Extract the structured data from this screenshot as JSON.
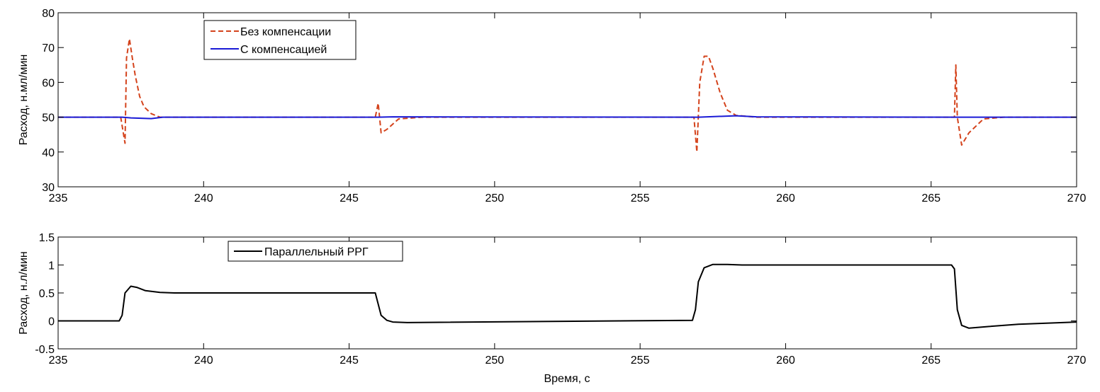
{
  "chart_data": [
    {
      "type": "line",
      "title": "",
      "xlabel": "",
      "ylabel": "Расход, н.мл/мин",
      "xlim": [
        235,
        270
      ],
      "ylim": [
        30,
        80
      ],
      "xticks": [
        235,
        240,
        245,
        250,
        255,
        260,
        265,
        270
      ],
      "yticks": [
        30,
        40,
        50,
        60,
        70,
        80
      ],
      "grid": false,
      "legend": "top-left",
      "series": [
        {
          "name": "Без компенсации",
          "color": "#d4431c",
          "style": "dashed",
          "x": [
            235,
            237.15,
            237.3,
            237.35,
            237.45,
            237.55,
            237.65,
            237.8,
            237.95,
            238.2,
            238.5,
            239,
            245.9,
            246.0,
            246.1,
            246.3,
            246.7,
            247.5,
            256.85,
            256.95,
            257.05,
            257.2,
            257.35,
            257.5,
            257.75,
            258,
            258.3,
            259,
            260,
            265.8,
            265.85,
            265.9,
            266.05,
            266.3,
            266.8,
            267.5,
            270
          ],
          "y": [
            50,
            50,
            42.5,
            67,
            72.5,
            67,
            62,
            56,
            53,
            51,
            50,
            50,
            50,
            54,
            45.5,
            46.5,
            49.5,
            50,
            50,
            40,
            60,
            67.5,
            67.5,
            64,
            57,
            52,
            50.5,
            50,
            50,
            50,
            65,
            50,
            42,
            45.5,
            49.5,
            50,
            50
          ]
        },
        {
          "name": "С компенсацией",
          "color": "#1a1ad6",
          "style": "solid",
          "x": [
            235,
            237.2,
            237.5,
            238.2,
            238.6,
            246,
            246.5,
            257,
            258.3,
            259,
            266,
            270
          ],
          "y": [
            50,
            50,
            49.8,
            49.6,
            50,
            50,
            50.1,
            50,
            50.4,
            50.1,
            50,
            50
          ]
        }
      ]
    },
    {
      "type": "line",
      "title": "",
      "xlabel": "Время, с",
      "ylabel": "Расход, н.л/мин",
      "xlim": [
        235,
        270
      ],
      "ylim": [
        -0.5,
        1.5
      ],
      "xticks": [
        235,
        240,
        245,
        250,
        255,
        260,
        265,
        270
      ],
      "yticks": [
        -0.5,
        0,
        0.5,
        1,
        1.5
      ],
      "grid": false,
      "legend": "top-left",
      "series": [
        {
          "name": "Параллельный РРГ",
          "color": "#000000",
          "style": "solid",
          "x": [
            235,
            237.1,
            237.2,
            237.3,
            237.5,
            237.7,
            238,
            238.5,
            239,
            245.9,
            246,
            246.1,
            246.3,
            246.5,
            247,
            256.8,
            256.9,
            257.0,
            257.2,
            257.5,
            258,
            258.5,
            259,
            265.7,
            265.8,
            265.9,
            266.05,
            266.3,
            267,
            268,
            270
          ],
          "y": [
            0,
            0,
            0.1,
            0.5,
            0.62,
            0.6,
            0.54,
            0.51,
            0.5,
            0.5,
            0.3,
            0.1,
            0.01,
            -0.02,
            -0.03,
            0.01,
            0.2,
            0.7,
            0.95,
            1.01,
            1.01,
            1.0,
            1.0,
            1.0,
            0.93,
            0.2,
            -0.08,
            -0.13,
            -0.1,
            -0.06,
            -0.02
          ]
        }
      ]
    }
  ]
}
